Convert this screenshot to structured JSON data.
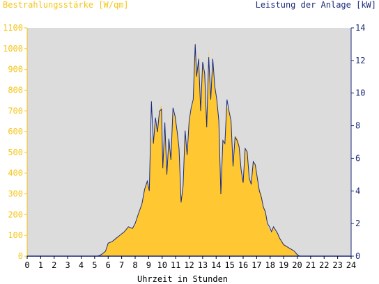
{
  "chart_data": {
    "type": "area",
    "left_axis_label": "Bestrahlungsstärke [W/qm]",
    "right_axis_label": "Leistung der Anlage [kW]",
    "xlabel": "Uhrzeit in Stunden",
    "x_ticks": [
      "0",
      "1",
      "2",
      "3",
      "4",
      "5",
      "6",
      "7",
      "8",
      "9",
      "10",
      "11",
      "12",
      "13",
      "14",
      "15",
      "16",
      "17",
      "18",
      "19",
      "20",
      "21",
      "22",
      "23",
      "24"
    ],
    "y_left_ticks": [
      "0",
      "100",
      "200",
      "300",
      "400",
      "500",
      "600",
      "700",
      "800",
      "900",
      "1000",
      "1100"
    ],
    "y_right_ticks": [
      "0",
      "2",
      "4",
      "6",
      "8",
      "10",
      "12",
      "14"
    ],
    "xlim": [
      0,
      24
    ],
    "ylim_left": [
      0,
      1100
    ],
    "ylim_right": [
      0,
      14
    ],
    "colors": {
      "irradiance": "#ffc832",
      "power": "#1a2a7a",
      "plot_bg": "#dcdcdc",
      "left_text": "#f5c518",
      "right_text": "#1a2a7a"
    },
    "series": [
      {
        "name": "Bestrahlungsstärke [W/qm]",
        "axis": "left",
        "x": [
          0,
          5.2,
          5.5,
          5.8,
          6.0,
          6.3,
          6.6,
          6.9,
          7.2,
          7.5,
          7.8,
          8.0,
          8.2,
          8.5,
          8.7,
          8.9,
          9.05,
          9.2,
          9.35,
          9.5,
          9.65,
          9.8,
          9.95,
          10.05,
          10.2,
          10.35,
          10.5,
          10.65,
          10.8,
          10.95,
          11.1,
          11.25,
          11.4,
          11.55,
          11.7,
          11.85,
          12.0,
          12.15,
          12.3,
          12.45,
          12.55,
          12.7,
          12.85,
          13.0,
          13.15,
          13.3,
          13.45,
          13.6,
          13.75,
          13.9,
          14.05,
          14.2,
          14.35,
          14.5,
          14.65,
          14.8,
          14.95,
          15.1,
          15.25,
          15.4,
          15.55,
          15.7,
          15.85,
          16.0,
          16.15,
          16.3,
          16.45,
          16.6,
          16.75,
          16.9,
          17.05,
          17.2,
          17.35,
          17.5,
          17.65,
          17.8,
          17.95,
          18.1,
          18.25,
          18.4,
          18.55,
          18.7,
          18.85,
          19.0,
          19.2,
          19.4,
          19.6,
          19.8,
          20.0,
          20.2,
          24
        ],
        "y": [
          0,
          0,
          10,
          25,
          60,
          70,
          90,
          100,
          120,
          140,
          130,
          160,
          200,
          250,
          320,
          360,
          310,
          580,
          540,
          650,
          600,
          700,
          730,
          420,
          640,
          400,
          560,
          460,
          690,
          680,
          600,
          520,
          260,
          330,
          600,
          480,
          650,
          700,
          750,
          1040,
          850,
          980,
          700,
          940,
          880,
          620,
          1000,
          760,
          960,
          820,
          760,
          650,
          300,
          560,
          540,
          720,
          700,
          650,
          430,
          580,
          570,
          540,
          420,
          360,
          520,
          500,
          380,
          350,
          450,
          440,
          380,
          320,
          300,
          240,
          220,
          150,
          130,
          110,
          140,
          120,
          110,
          90,
          75,
          60,
          50,
          40,
          30,
          20,
          10,
          0,
          0
        ]
      },
      {
        "name": "Leistung der Anlage [kW]",
        "axis": "right",
        "x": [
          0,
          5.2,
          5.5,
          5.8,
          6.0,
          6.3,
          6.6,
          6.9,
          7.2,
          7.5,
          7.8,
          8.0,
          8.2,
          8.5,
          8.7,
          8.9,
          9.05,
          9.2,
          9.35,
          9.5,
          9.65,
          9.8,
          9.95,
          10.05,
          10.2,
          10.35,
          10.5,
          10.65,
          10.8,
          10.95,
          11.1,
          11.25,
          11.4,
          11.55,
          11.7,
          11.85,
          12.0,
          12.15,
          12.3,
          12.45,
          12.55,
          12.7,
          12.85,
          13.0,
          13.15,
          13.3,
          13.45,
          13.6,
          13.75,
          13.9,
          14.05,
          14.2,
          14.35,
          14.5,
          14.65,
          14.8,
          14.95,
          15.1,
          15.25,
          15.4,
          15.55,
          15.7,
          15.85,
          16.0,
          16.15,
          16.3,
          16.45,
          16.6,
          16.75,
          16.9,
          17.05,
          17.2,
          17.35,
          17.5,
          17.65,
          17.8,
          17.95,
          18.1,
          18.25,
          18.4,
          18.55,
          18.7,
          18.85,
          19.0,
          19.2,
          19.4,
          19.6,
          19.8,
          20.0,
          20.2,
          24
        ],
        "y": [
          0,
          0,
          0.1,
          0.3,
          0.8,
          0.9,
          1.1,
          1.3,
          1.5,
          1.8,
          1.7,
          2.0,
          2.5,
          3.2,
          4.1,
          4.6,
          4.0,
          9.5,
          6.9,
          8.5,
          7.6,
          8.9,
          9.0,
          5.4,
          8.2,
          5.0,
          7.2,
          5.9,
          9.1,
          8.6,
          7.7,
          6.6,
          3.3,
          4.3,
          7.7,
          6.2,
          8.3,
          9.1,
          9.6,
          13.0,
          11.0,
          12.1,
          8.9,
          11.9,
          11.2,
          7.9,
          12.2,
          9.6,
          12.1,
          10.4,
          9.6,
          8.3,
          3.8,
          7.1,
          6.9,
          9.6,
          8.9,
          8.3,
          5.5,
          7.3,
          7.1,
          6.7,
          5.3,
          4.5,
          6.6,
          6.4,
          4.8,
          4.4,
          5.8,
          5.6,
          4.8,
          4.0,
          3.6,
          3.0,
          2.7,
          2.0,
          1.8,
          1.5,
          1.8,
          1.6,
          1.4,
          1.1,
          0.9,
          0.7,
          0.6,
          0.5,
          0.4,
          0.3,
          0.1,
          0,
          0
        ]
      }
    ]
  }
}
